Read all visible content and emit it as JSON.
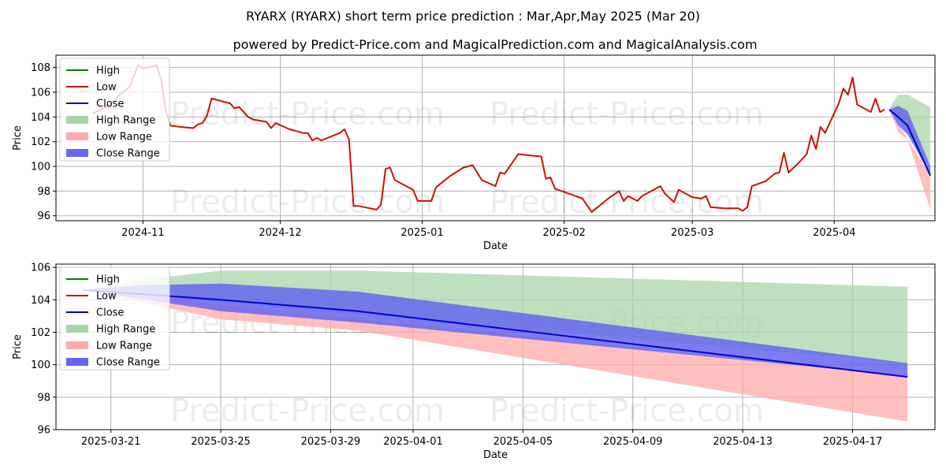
{
  "title": "RYARX (RYARX) short term price prediction : Mar,Apr,May 2025 (Mar 20)",
  "subtitle": "powered by Predict-Price.com and MagicalPrediction.com and MagicalAnalysis.com",
  "watermark": "Predict-Price.com",
  "colors": {
    "high": "#008000",
    "low": "#cc1100",
    "close": "#0000cc",
    "high_range": "#a8d5a8",
    "low_range": "#ffaaaa",
    "close_range": "#6666ee"
  },
  "chart_data": [
    {
      "type": "line",
      "xlabel": "Date",
      "ylabel": "Price",
      "x_type": "date",
      "xlim": [
        "2024-10-13",
        "2025-04-23"
      ],
      "ylim": [
        95.6,
        109.0
      ],
      "yticks": [
        96,
        98,
        100,
        102,
        104,
        106,
        108
      ],
      "xticks": [
        {
          "date": "2024-11-01",
          "label": "2024-11"
        },
        {
          "date": "2024-12-01",
          "label": "2024-12"
        },
        {
          "date": "2025-01-01",
          "label": "2025-01"
        },
        {
          "date": "2025-02-01",
          "label": "2025-02"
        },
        {
          "date": "2025-03-01",
          "label": "2025-03"
        },
        {
          "date": "2025-04-01",
          "label": "2025-04"
        }
      ],
      "grid": true,
      "legend_position": "upper-left",
      "legend": [
        "High",
        "Low",
        "Close",
        "High Range",
        "Low Range",
        "Close Range"
      ],
      "series": [
        {
          "name": "Low",
          "style": "line",
          "points": [
            [
              "2024-10-21",
              104.3
            ],
            [
              "2024-10-23",
              104.6
            ],
            [
              "2024-10-25",
              105.1
            ],
            [
              "2024-10-27",
              105.8
            ],
            [
              "2024-10-29",
              106.4
            ],
            [
              "2024-10-31",
              108.2
            ],
            [
              "2024-11-01",
              107.9
            ],
            [
              "2024-11-04",
              108.2
            ],
            [
              "2024-11-05",
              107.0
            ],
            [
              "2024-11-06",
              104.5
            ],
            [
              "2024-11-07",
              103.3
            ],
            [
              "2024-11-09",
              103.2
            ],
            [
              "2024-11-12",
              103.1
            ],
            [
              "2024-11-13",
              103.4
            ],
            [
              "2024-11-14",
              103.5
            ],
            [
              "2024-11-15",
              104.1
            ],
            [
              "2024-11-16",
              105.5
            ],
            [
              "2024-11-19",
              105.2
            ],
            [
              "2024-11-20",
              105.1
            ],
            [
              "2024-11-21",
              104.7
            ],
            [
              "2024-11-22",
              104.8
            ],
            [
              "2024-11-24",
              104.0
            ],
            [
              "2024-11-25",
              103.8
            ],
            [
              "2024-11-28",
              103.6
            ],
            [
              "2024-11-29",
              103.1
            ],
            [
              "2024-11-30",
              103.5
            ],
            [
              "2024-12-03",
              103.0
            ],
            [
              "2024-12-06",
              102.7
            ],
            [
              "2024-12-07",
              102.7
            ],
            [
              "2024-12-08",
              102.1
            ],
            [
              "2024-12-09",
              102.3
            ],
            [
              "2024-12-10",
              102.1
            ],
            [
              "2024-12-14",
              102.7
            ],
            [
              "2024-12-15",
              103.0
            ],
            [
              "2024-12-16",
              102.2
            ],
            [
              "2024-12-17",
              96.8
            ],
            [
              "2024-12-18",
              96.8
            ],
            [
              "2024-12-22",
              96.5
            ],
            [
              "2024-12-23",
              96.9
            ],
            [
              "2024-12-24",
              99.8
            ],
            [
              "2024-12-25",
              99.9
            ],
            [
              "2024-12-26",
              98.9
            ],
            [
              "2024-12-30",
              98.1
            ],
            [
              "2024-12-31",
              97.2
            ],
            [
              "2025-01-03",
              97.2
            ],
            [
              "2025-01-04",
              98.3
            ],
            [
              "2025-01-07",
              99.2
            ],
            [
              "2025-01-10",
              99.9
            ],
            [
              "2025-01-12",
              100.1
            ],
            [
              "2025-01-14",
              98.9
            ],
            [
              "2025-01-17",
              98.4
            ],
            [
              "2025-01-18",
              99.5
            ],
            [
              "2025-01-19",
              99.4
            ],
            [
              "2025-01-22",
              101.0
            ],
            [
              "2025-01-24",
              100.9
            ],
            [
              "2025-01-27",
              100.8
            ],
            [
              "2025-01-28",
              99.0
            ],
            [
              "2025-01-29",
              99.1
            ],
            [
              "2025-01-30",
              98.2
            ],
            [
              "2025-02-05",
              97.4
            ],
            [
              "2025-02-07",
              96.3
            ],
            [
              "2025-02-08",
              96.6
            ],
            [
              "2025-02-11",
              97.5
            ],
            [
              "2025-02-13",
              98.0
            ],
            [
              "2025-02-14",
              97.2
            ],
            [
              "2025-02-15",
              97.6
            ],
            [
              "2025-02-17",
              97.2
            ],
            [
              "2025-02-18",
              97.6
            ],
            [
              "2025-02-22",
              98.4
            ],
            [
              "2025-02-23",
              97.8
            ],
            [
              "2025-02-25",
              97.1
            ],
            [
              "2025-02-26",
              98.1
            ],
            [
              "2025-03-01",
              97.5
            ],
            [
              "2025-03-03",
              97.4
            ],
            [
              "2025-03-04",
              97.6
            ],
            [
              "2025-03-05",
              96.7
            ],
            [
              "2025-03-08",
              96.6
            ],
            [
              "2025-03-11",
              96.6
            ],
            [
              "2025-03-12",
              96.4
            ],
            [
              "2025-03-13",
              96.7
            ],
            [
              "2025-03-14",
              98.4
            ],
            [
              "2025-03-17",
              98.8
            ],
            [
              "2025-03-18",
              99.1
            ],
            [
              "2025-03-19",
              99.4
            ],
            [
              "2025-03-20",
              99.5
            ],
            [
              "2025-03-21",
              101.1
            ],
            [
              "2025-03-22",
              99.5
            ],
            [
              "2025-03-24",
              100.2
            ],
            [
              "2025-03-26",
              101.0
            ],
            [
              "2025-03-27",
              102.5
            ],
            [
              "2025-03-28",
              101.4
            ],
            [
              "2025-03-29",
              103.2
            ],
            [
              "2025-03-30",
              102.7
            ],
            [
              "2025-04-02",
              105.1
            ],
            [
              "2025-04-03",
              106.3
            ],
            [
              "2025-04-04",
              105.8
            ],
            [
              "2025-04-05",
              107.2
            ],
            [
              "2025-04-06",
              105.0
            ],
            [
              "2025-04-09",
              104.4
            ],
            [
              "2025-04-10",
              105.5
            ],
            [
              "2025-04-11",
              104.4
            ],
            [
              "2025-04-12",
              104.6
            ]
          ]
        },
        {
          "name": "High Range",
          "style": "band",
          "upper": [
            [
              "2025-04-13",
              104.6
            ],
            [
              "2025-04-14",
              105.3
            ],
            [
              "2025-04-15",
              105.8
            ],
            [
              "2025-04-17",
              105.8
            ],
            [
              "2025-04-22",
              104.8
            ]
          ],
          "lower": [
            [
              "2025-04-13",
              104.6
            ],
            [
              "2025-04-22",
              100.1
            ]
          ]
        },
        {
          "name": "Low Range",
          "style": "band",
          "upper": [
            [
              "2025-04-13",
              104.6
            ],
            [
              "2025-04-22",
              99.3
            ]
          ],
          "lower": [
            [
              "2025-04-13",
              104.6
            ],
            [
              "2025-04-15",
              102.8
            ],
            [
              "2025-04-17",
              102.2
            ],
            [
              "2025-04-22",
              96.5
            ]
          ]
        },
        {
          "name": "Close Range",
          "style": "band",
          "upper": [
            [
              "2025-04-13",
              104.6
            ],
            [
              "2025-04-15",
              104.9
            ],
            [
              "2025-04-17",
              104.5
            ],
            [
              "2025-04-22",
              100.0
            ]
          ],
          "lower": [
            [
              "2025-04-13",
              104.6
            ],
            [
              "2025-04-15",
              103.3
            ],
            [
              "2025-04-17",
              102.6
            ],
            [
              "2025-04-22",
              99.3
            ]
          ]
        },
        {
          "name": "Close",
          "style": "line",
          "points": [
            [
              "2025-04-13",
              104.6
            ],
            [
              "2025-04-15",
              104.0
            ],
            [
              "2025-04-17",
              103.3
            ],
            [
              "2025-04-22",
              99.25
            ]
          ]
        }
      ]
    },
    {
      "type": "line",
      "xlabel": "Date",
      "ylabel": "Price",
      "x_type": "date",
      "xlim": [
        "2025-03-19",
        "2025-04-20"
      ],
      "ylim": [
        96.0,
        106.2
      ],
      "yticks": [
        96,
        98,
        100,
        102,
        104,
        106
      ],
      "xticks": [
        {
          "date": "2025-03-21",
          "label": "2025-03-21"
        },
        {
          "date": "2025-03-25",
          "label": "2025-03-25"
        },
        {
          "date": "2025-03-29",
          "label": "2025-03-29"
        },
        {
          "date": "2025-04-01",
          "label": "2025-04-01"
        },
        {
          "date": "2025-04-05",
          "label": "2025-04-05"
        },
        {
          "date": "2025-04-09",
          "label": "2025-04-09"
        },
        {
          "date": "2025-04-13",
          "label": "2025-04-13"
        },
        {
          "date": "2025-04-17",
          "label": "2025-04-17"
        }
      ],
      "grid": true,
      "legend_position": "upper-left",
      "legend": [
        "High",
        "Low",
        "Close",
        "High Range",
        "Low Range",
        "Close Range"
      ],
      "series": [
        {
          "name": "High Range",
          "style": "band",
          "upper": [
            [
              "2025-03-20",
              104.6
            ],
            [
              "2025-03-22",
              105.2
            ],
            [
              "2025-03-25",
              105.8
            ],
            [
              "2025-03-30",
              105.8
            ],
            [
              "2025-04-19",
              104.8
            ]
          ],
          "lower": [
            [
              "2025-03-20",
              104.6
            ],
            [
              "2025-04-19",
              100.1
            ]
          ]
        },
        {
          "name": "Low Range",
          "style": "band",
          "upper": [
            [
              "2025-03-20",
              104.6
            ],
            [
              "2025-04-19",
              99.3
            ]
          ],
          "lower": [
            [
              "2025-03-20",
              104.6
            ],
            [
              "2025-03-25",
              102.8
            ],
            [
              "2025-03-30",
              102.1
            ],
            [
              "2025-04-19",
              96.5
            ]
          ]
        },
        {
          "name": "Close Range",
          "style": "band",
          "upper": [
            [
              "2025-03-20",
              104.6
            ],
            [
              "2025-03-22",
              104.9
            ],
            [
              "2025-03-25",
              105.0
            ],
            [
              "2025-03-30",
              104.5
            ],
            [
              "2025-04-19",
              100.1
            ]
          ],
          "lower": [
            [
              "2025-03-20",
              104.6
            ],
            [
              "2025-03-25",
              103.3
            ],
            [
              "2025-03-30",
              102.6
            ],
            [
              "2025-04-19",
              99.3
            ]
          ]
        },
        {
          "name": "Close",
          "style": "line",
          "points": [
            [
              "2025-03-20",
              104.6
            ],
            [
              "2025-03-25",
              104.0
            ],
            [
              "2025-03-30",
              103.3
            ],
            [
              "2025-04-19",
              99.25
            ]
          ]
        }
      ]
    }
  ]
}
